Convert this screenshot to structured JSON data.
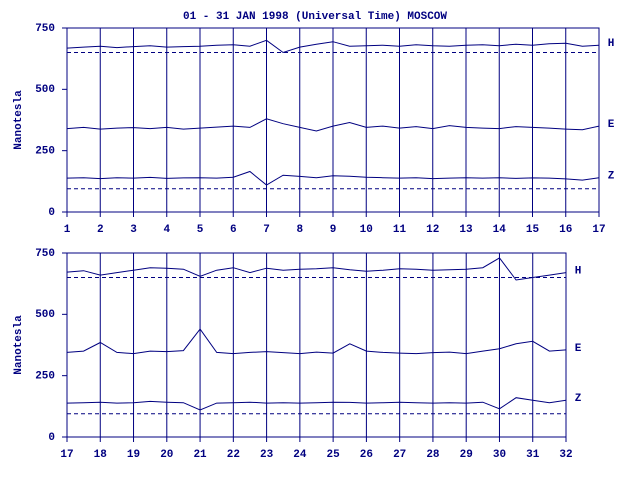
{
  "chart_data": [
    {
      "type": "line",
      "title": "01 - 31 JAN 1998 (Universal Time) MOSCOW",
      "ylabel": "Nanotesla",
      "x": [
        1,
        1.5,
        2,
        2.5,
        3,
        3.5,
        4,
        4.5,
        5,
        5.5,
        6,
        6.5,
        7,
        7.5,
        8,
        8.5,
        9,
        9.5,
        10,
        10.5,
        11,
        11.5,
        12,
        12.5,
        13,
        13.5,
        14,
        14.5,
        15,
        15.5,
        16,
        16.5,
        17
      ],
      "series": [
        {
          "name": "H",
          "color": "#000080",
          "values": [
            668,
            672,
            676,
            670,
            674,
            678,
            672,
            674,
            676,
            680,
            682,
            676,
            700,
            650,
            672,
            684,
            694,
            676,
            678,
            680,
            676,
            682,
            678,
            676,
            680,
            682,
            678,
            684,
            680,
            686,
            688,
            676,
            680
          ]
        },
        {
          "name": "E",
          "color": "#000080",
          "values": [
            340,
            345,
            338,
            342,
            344,
            340,
            345,
            338,
            342,
            346,
            350,
            345,
            380,
            360,
            345,
            330,
            350,
            365,
            345,
            350,
            342,
            348,
            340,
            352,
            345,
            342,
            340,
            348,
            345,
            342,
            338,
            335,
            350
          ]
        },
        {
          "name": "Z",
          "color": "#000080",
          "values": [
            138,
            140,
            136,
            140,
            138,
            141,
            137,
            139,
            140,
            138,
            142,
            165,
            110,
            150,
            145,
            140,
            148,
            146,
            142,
            140,
            138,
            140,
            136,
            138,
            140,
            138,
            140,
            137,
            139,
            138,
            135,
            130,
            140
          ]
        }
      ],
      "ref_lines": [
        650,
        95
      ],
      "xlim": [
        1,
        17
      ],
      "xticks": [
        1,
        2,
        3,
        4,
        5,
        6,
        7,
        8,
        9,
        10,
        11,
        12,
        13,
        14,
        15,
        16,
        17
      ],
      "ylim": [
        0,
        750
      ],
      "yticks": [
        0,
        250,
        500,
        750
      ],
      "grid": true
    },
    {
      "type": "line",
      "ylabel": "Nanotesla",
      "x": [
        17,
        17.5,
        18,
        18.5,
        19,
        19.5,
        20,
        20.5,
        21,
        21.5,
        22,
        22.5,
        23,
        23.5,
        24,
        24.5,
        25,
        25.5,
        26,
        26.5,
        27,
        27.5,
        28,
        28.5,
        29,
        29.5,
        30,
        30.5,
        31,
        31.5,
        32
      ],
      "series": [
        {
          "name": "H",
          "color": "#000080",
          "values": [
            672,
            678,
            660,
            670,
            680,
            690,
            688,
            684,
            655,
            680,
            690,
            670,
            688,
            680,
            684,
            686,
            690,
            682,
            676,
            680,
            686,
            684,
            680,
            682,
            684,
            690,
            730,
            640,
            650,
            660,
            670
          ]
        },
        {
          "name": "E",
          "color": "#000080",
          "values": [
            345,
            350,
            385,
            345,
            340,
            350,
            348,
            352,
            440,
            345,
            340,
            345,
            348,
            344,
            340,
            346,
            342,
            380,
            350,
            345,
            342,
            340,
            344,
            346,
            340,
            350,
            360,
            380,
            390,
            350,
            355
          ]
        },
        {
          "name": "Z",
          "color": "#000080",
          "values": [
            138,
            140,
            142,
            138,
            140,
            145,
            142,
            140,
            110,
            138,
            140,
            142,
            138,
            140,
            138,
            140,
            142,
            141,
            138,
            140,
            142,
            140,
            138,
            140,
            138,
            142,
            115,
            160,
            150,
            140,
            150
          ]
        }
      ],
      "ref_lines": [
        650,
        95
      ],
      "xlim": [
        17,
        32
      ],
      "xticks": [
        17,
        18,
        19,
        20,
        21,
        22,
        23,
        24,
        25,
        26,
        27,
        28,
        29,
        30,
        31,
        32
      ],
      "ylim": [
        0,
        750
      ],
      "yticks": [
        0,
        250,
        500,
        750
      ],
      "grid": true
    }
  ]
}
